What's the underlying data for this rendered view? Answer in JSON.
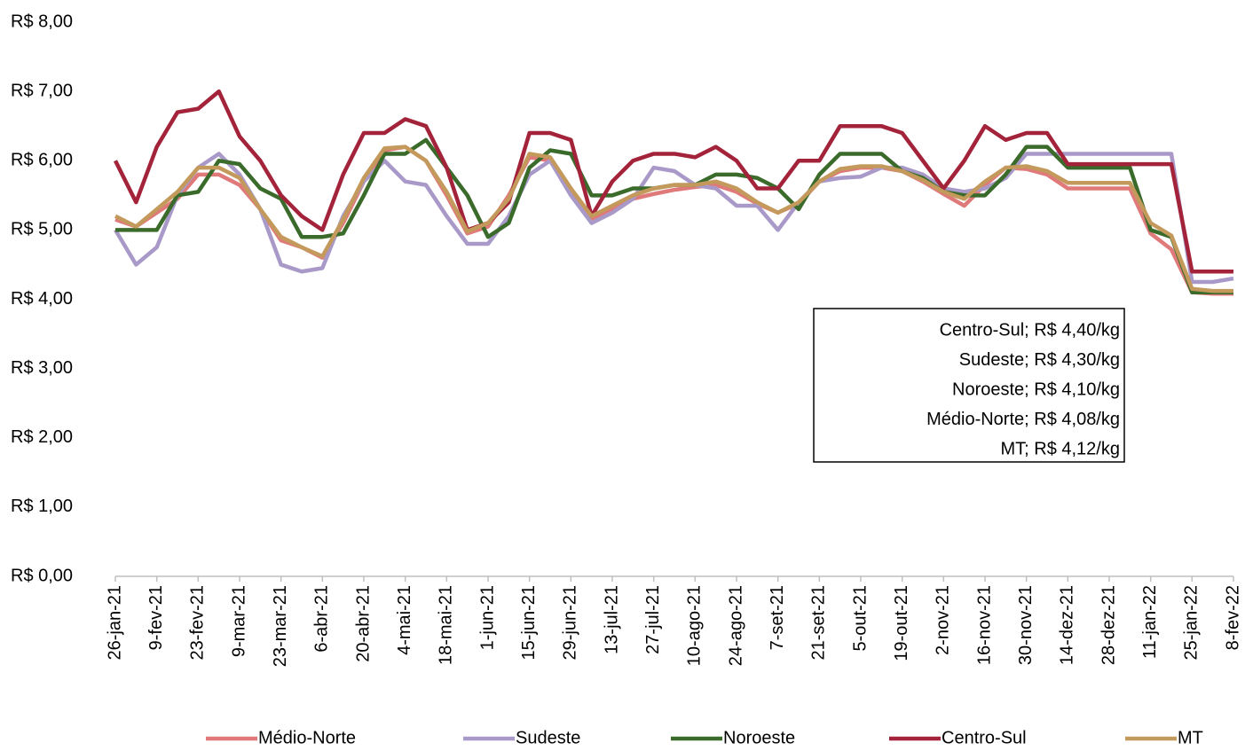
{
  "chart_data": {
    "type": "line",
    "categories": [
      "26-jan-21",
      null,
      "9-fev-21",
      null,
      "23-fev-21",
      null,
      "9-mar-21",
      null,
      "23-mar-21",
      null,
      "6-abr-21",
      null,
      "20-abr-21",
      null,
      "4-mai-21",
      null,
      "18-mai-21",
      null,
      "1-jun-21",
      null,
      "15-jun-21",
      null,
      "29-jun-21",
      null,
      "13-jul-21",
      null,
      "27-jul-21",
      null,
      "10-ago-21",
      null,
      "24-ago-21",
      null,
      "7-set-21",
      null,
      "21-set-21",
      null,
      "5-out-21",
      null,
      "19-out-21",
      null,
      "2-nov-21",
      null,
      "16-nov-21",
      null,
      "30-nov-21",
      null,
      "14-dez-21",
      null,
      "28-dez-21",
      null,
      "11-jan-22",
      null,
      "25-jan-22",
      null,
      "8-fev-22"
    ],
    "series": [
      {
        "name": "Médio-Norte",
        "color": "#e07a7a",
        "values": [
          5.15,
          5.05,
          5.25,
          5.45,
          5.8,
          5.8,
          5.65,
          5.3,
          4.85,
          4.75,
          4.6,
          5.1,
          5.7,
          6.15,
          6.2,
          6.0,
          5.5,
          4.95,
          5.05,
          5.5,
          6.05,
          6.0,
          5.55,
          5.15,
          5.3,
          5.45,
          5.52,
          5.58,
          5.62,
          5.65,
          5.55,
          5.38,
          5.25,
          5.38,
          5.7,
          5.85,
          5.9,
          5.9,
          5.85,
          5.7,
          5.52,
          5.35,
          5.65,
          5.9,
          5.88,
          5.8,
          5.6,
          5.6,
          5.6,
          5.6,
          4.95,
          4.72,
          4.1,
          4.08,
          4.08
        ]
      },
      {
        "name": "Sudeste",
        "color": "#a899c8",
        "values": [
          5.0,
          4.5,
          4.75,
          5.5,
          5.9,
          6.1,
          5.8,
          5.3,
          4.5,
          4.4,
          4.45,
          5.2,
          5.7,
          6.0,
          5.7,
          5.65,
          5.2,
          4.8,
          4.8,
          5.2,
          5.8,
          6.0,
          5.5,
          5.1,
          5.25,
          5.45,
          5.9,
          5.85,
          5.65,
          5.6,
          5.35,
          5.35,
          5.0,
          5.4,
          5.7,
          5.75,
          5.77,
          5.9,
          5.9,
          5.8,
          5.6,
          5.55,
          5.6,
          5.75,
          6.1,
          6.1,
          6.1,
          6.1,
          6.1,
          6.1,
          6.1,
          6.1,
          4.25,
          4.25,
          4.3
        ]
      },
      {
        "name": "Noroeste",
        "color": "#3a6b2a",
        "values": [
          5.0,
          5.0,
          5.0,
          5.5,
          5.55,
          6.0,
          5.95,
          5.6,
          5.45,
          4.9,
          4.9,
          4.95,
          5.5,
          6.1,
          6.1,
          6.3,
          5.9,
          5.5,
          4.9,
          5.1,
          5.9,
          6.15,
          6.1,
          5.5,
          5.5,
          5.6,
          5.6,
          5.65,
          5.65,
          5.8,
          5.8,
          5.75,
          5.6,
          5.3,
          5.8,
          6.1,
          6.1,
          6.1,
          5.85,
          5.75,
          5.55,
          5.5,
          5.5,
          5.8,
          6.2,
          6.2,
          5.9,
          5.9,
          5.9,
          5.9,
          5.0,
          4.9,
          4.1,
          4.1,
          4.1
        ]
      },
      {
        "name": "Centro-Sul",
        "color": "#a3243a",
        "values": [
          6.0,
          5.4,
          6.2,
          6.7,
          6.75,
          7.0,
          6.35,
          6.0,
          5.5,
          5.2,
          5.0,
          5.8,
          6.4,
          6.4,
          6.6,
          6.5,
          5.9,
          5.0,
          5.1,
          5.4,
          6.4,
          6.4,
          6.3,
          5.2,
          5.7,
          6.0,
          6.1,
          6.1,
          6.05,
          6.2,
          6.0,
          5.6,
          5.6,
          6.0,
          6.0,
          6.5,
          6.5,
          6.5,
          6.4,
          6.0,
          5.6,
          6.0,
          6.5,
          6.3,
          6.4,
          6.4,
          5.95,
          5.95,
          5.95,
          5.95,
          5.95,
          5.95,
          4.4,
          4.4,
          4.4
        ]
      },
      {
        "name": "MT",
        "color": "#c49a5c",
        "values": [
          5.2,
          5.05,
          5.3,
          5.55,
          5.9,
          5.9,
          5.75,
          5.3,
          4.9,
          4.75,
          4.62,
          5.15,
          5.75,
          6.18,
          6.2,
          6.0,
          5.55,
          4.98,
          5.1,
          5.45,
          6.1,
          6.05,
          5.6,
          5.2,
          5.35,
          5.5,
          5.6,
          5.65,
          5.65,
          5.7,
          5.6,
          5.4,
          5.25,
          5.4,
          5.7,
          5.88,
          5.92,
          5.92,
          5.85,
          5.72,
          5.55,
          5.45,
          5.7,
          5.9,
          5.92,
          5.85,
          5.68,
          5.68,
          5.68,
          5.68,
          5.1,
          4.92,
          4.15,
          4.12,
          4.12
        ]
      }
    ],
    "ylim": [
      0,
      8
    ],
    "yticks": [
      {
        "value": 0,
        "label": "R$ 0,00"
      },
      {
        "value": 1,
        "label": "R$ 1,00"
      },
      {
        "value": 2,
        "label": "R$ 2,00"
      },
      {
        "value": 3,
        "label": "R$ 3,00"
      },
      {
        "value": 4,
        "label": "R$ 4,00"
      },
      {
        "value": 5,
        "label": "R$ 5,00"
      },
      {
        "value": 6,
        "label": "R$ 6,00"
      },
      {
        "value": 7,
        "label": "R$ 7,00"
      },
      {
        "value": 8,
        "label": "R$ 8,00"
      }
    ],
    "grid": false,
    "legend": "bottom",
    "annotations": [
      "Centro-Sul; R$ 4,40/kg",
      "Sudeste; R$ 4,30/kg",
      "Noroeste; R$ 4,10/kg",
      "Médio-Norte; R$ 4,08/kg",
      "MT; R$ 4,12/kg"
    ]
  }
}
